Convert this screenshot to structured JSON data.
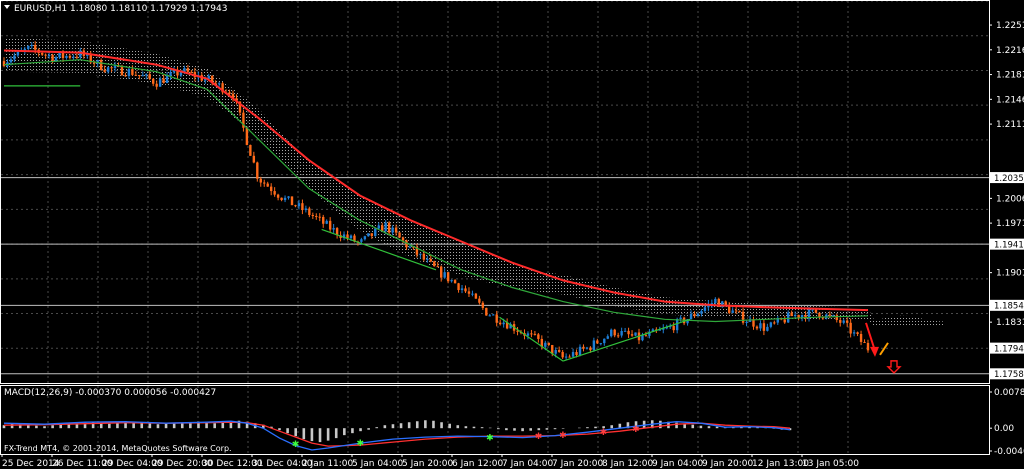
{
  "window": {
    "symbol_label": "EURUSD,H1",
    "ohlc": "1.18080 1.18110 1.17929 1.17943",
    "macd_label": "MACD(12,26,9) -0.000370 0.000056 -0.000427",
    "copyright": "FX-Trend MT4, © 2001-2014, MetaQuotes Software Corp."
  },
  "colors": {
    "background": "#000000",
    "grid": "#4a4a4a",
    "frame": "#ffffff",
    "bull_candle": "#1e7fd6",
    "bear_candle": "#ff6a1a",
    "ema_red": "#ff2b2b",
    "ema_green": "#2fa83a",
    "cloud": "#dddddd",
    "macd_hist": "#c8c8c8",
    "macd_main": "#2a6fff",
    "macd_signal": "#ff3030"
  },
  "chart_data": [
    {
      "type": "candlestick",
      "title": "",
      "price_axis": {
        "ylim": [
          1.1745,
          1.2285
        ],
        "ticks": [
          "1.22510",
          "1.22160",
          "1.21810",
          "1.21460",
          "1.21110",
          "1.20060",
          "1.19710",
          "1.19010",
          "1.18310",
          "1.17943"
        ]
      },
      "highlight_levels": [
        {
          "value": "1.20354",
          "price": 1.20354
        },
        {
          "value": "1.19413",
          "price": 1.19413
        },
        {
          "value": "1.18548",
          "price": 1.18548
        },
        {
          "value": "1.17580",
          "price": 1.1758
        }
      ],
      "time_axis": {
        "labels": [
          "25 Dec 2014",
          "26 Dec 11:00",
          "29 Dec 04:00",
          "29 Dec 20:00",
          "30 Dec 12:00",
          "31 Dec 04:00",
          "2 Jan 11:00",
          "5 Jan 04:00",
          "5 Jan 20:00",
          "6 Jan 12:00",
          "7 Jan 04:00",
          "7 Jan 20:00",
          "8 Jan 12:00",
          "9 Jan 04:00",
          "9 Jan 20:00",
          "12 Jan 13:00",
          "13 Jan 05:00"
        ]
      },
      "close_path": [
        [
          0,
          1.22
        ],
        [
          1,
          1.2218
        ],
        [
          2,
          1.2205
        ],
        [
          3,
          1.221
        ],
        [
          4,
          1.219
        ],
        [
          5,
          1.2185
        ],
        [
          6,
          1.217
        ],
        [
          7,
          1.2186
        ],
        [
          8,
          1.2174
        ],
        [
          9,
          1.2155
        ],
        [
          10,
          1.2035
        ],
        [
          11,
          1.2006
        ],
        [
          12,
          1.1985
        ],
        [
          13,
          1.196
        ],
        [
          14,
          1.1942
        ],
        [
          15,
          1.1968
        ],
        [
          16,
          1.1935
        ],
        [
          17,
          1.1905
        ],
        [
          18,
          1.188
        ],
        [
          19,
          1.1845
        ],
        [
          20,
          1.1825
        ],
        [
          21,
          1.1805
        ],
        [
          22,
          1.178
        ],
        [
          23,
          1.1795
        ],
        [
          24,
          1.1818
        ],
        [
          25,
          1.1808
        ],
        [
          26,
          1.182
        ],
        [
          27,
          1.1838
        ],
        [
          28,
          1.1862
        ],
        [
          29,
          1.1838
        ],
        [
          30,
          1.1822
        ],
        [
          31,
          1.184
        ],
        [
          32,
          1.1845
        ],
        [
          33,
          1.183
        ],
        [
          34,
          1.1794
        ]
      ],
      "ema_red_path": [
        [
          0,
          1.2215
        ],
        [
          3,
          1.2212
        ],
        [
          6,
          1.2195
        ],
        [
          8,
          1.2175
        ],
        [
          10,
          1.212
        ],
        [
          12,
          1.206
        ],
        [
          14,
          1.201
        ],
        [
          16,
          1.1975
        ],
        [
          18,
          1.1945
        ],
        [
          20,
          1.1915
        ],
        [
          22,
          1.189
        ],
        [
          24,
          1.1873
        ],
        [
          26,
          1.186
        ],
        [
          28,
          1.1855
        ],
        [
          30,
          1.1852
        ],
        [
          32,
          1.185
        ],
        [
          34,
          1.1848
        ]
      ],
      "ema_green_path": [
        [
          0,
          1.2195
        ],
        [
          3,
          1.2202
        ],
        [
          6,
          1.2185
        ],
        [
          8,
          1.216
        ],
        [
          10,
          1.209
        ],
        [
          12,
          1.202
        ],
        [
          14,
          1.1975
        ],
        [
          16,
          1.194
        ],
        [
          18,
          1.1905
        ],
        [
          20,
          1.188
        ],
        [
          22,
          1.186
        ],
        [
          24,
          1.1845
        ],
        [
          26,
          1.1835
        ],
        [
          28,
          1.1832
        ],
        [
          30,
          1.1835
        ],
        [
          32,
          1.1838
        ],
        [
          34,
          1.184
        ]
      ],
      "annotations": [
        "sell-arrow",
        "down-arrow-signal",
        "orange-forecast-line"
      ]
    },
    {
      "type": "bar",
      "title": "MACD(12,26,9)",
      "axis_ticks": [
        "0.00780",
        "0.00",
        "-0.00463"
      ],
      "ylim": [
        -0.0052,
        0.0085
      ],
      "histogram": [
        0.0006,
        0.0009,
        0.0008,
        0.0007,
        0.0005,
        0.0004,
        0.0006,
        0.0008,
        0.0009,
        0.001,
        0.0011,
        0.0012,
        0.001,
        0.0009,
        0.0012,
        0.0014,
        0.0013,
        0.0012,
        0.001,
        0.0008,
        0.0009,
        0.0011,
        0.001,
        0.0012,
        0.0013,
        0.0012,
        0.001,
        0.0011,
        0.0014,
        0.0015,
        0.0013,
        0.001,
        0.0007,
        0.0003,
        -0.0004,
        -0.001,
        -0.0016,
        -0.0022,
        -0.0026,
        -0.0028,
        -0.0025,
        -0.002,
        -0.0014,
        -0.001,
        -0.0006,
        -0.0003,
        0.0002,
        0.0006,
        0.0008,
        0.001,
        0.0012,
        0.0014,
        0.0016,
        0.0015,
        0.0012,
        0.0009,
        0.0006,
        0.0004,
        0.0003,
        0.0002,
        0.0001,
        -0.0002,
        -0.0004,
        -0.0005,
        -0.0006,
        -0.0005,
        -0.0004,
        -0.0003,
        -0.0002,
        -0.0001,
        0.0,
        0.0001,
        0.0002,
        0.0003,
        0.0004,
        0.0006,
        0.0009,
        0.0012,
        0.0014,
        0.0015,
        0.0016,
        0.0015,
        0.0013,
        0.0011,
        0.0009,
        0.0007,
        0.0005,
        0.0004,
        0.0003,
        0.0002,
        0.0003,
        0.0004,
        0.0003,
        0.0002,
        0.0001,
        -0.0001,
        -0.0003,
        -0.0004
      ],
      "main_line": [
        [
          0,
          0.001
        ],
        [
          5,
          0.0008
        ],
        [
          10,
          0.0012
        ],
        [
          15,
          0.0013
        ],
        [
          20,
          0.001
        ],
        [
          25,
          0.0012
        ],
        [
          28,
          0.0014
        ],
        [
          30,
          0.001
        ],
        [
          32,
          0.0
        ],
        [
          34,
          -0.002
        ],
        [
          36,
          -0.0035
        ],
        [
          38,
          -0.0044
        ],
        [
          40,
          -0.004
        ],
        [
          44,
          -0.003
        ],
        [
          48,
          -0.0022
        ],
        [
          52,
          -0.0018
        ],
        [
          56,
          -0.0016
        ],
        [
          60,
          -0.0017
        ],
        [
          64,
          -0.0019
        ],
        [
          68,
          -0.0015
        ],
        [
          72,
          -0.0008
        ],
        [
          76,
          0.0
        ],
        [
          80,
          0.0008
        ],
        [
          83,
          0.0013
        ],
        [
          86,
          0.001
        ],
        [
          89,
          0.0002
        ],
        [
          92,
          0.0003
        ],
        [
          95,
          0.0001
        ],
        [
          97,
          -0.0003
        ]
      ],
      "signal_line": [
        [
          0,
          0.0006
        ],
        [
          5,
          0.0007
        ],
        [
          10,
          0.0009
        ],
        [
          15,
          0.0011
        ],
        [
          20,
          0.001
        ],
        [
          25,
          0.0011
        ],
        [
          28,
          0.0012
        ],
        [
          30,
          0.0011
        ],
        [
          32,
          0.0006
        ],
        [
          34,
          -0.0006
        ],
        [
          36,
          -0.0018
        ],
        [
          38,
          -0.003
        ],
        [
          40,
          -0.0036
        ],
        [
          44,
          -0.0034
        ],
        [
          48,
          -0.0028
        ],
        [
          52,
          -0.0022
        ],
        [
          56,
          -0.0018
        ],
        [
          60,
          -0.0016
        ],
        [
          64,
          -0.0016
        ],
        [
          68,
          -0.0015
        ],
        [
          72,
          -0.0012
        ],
        [
          76,
          -0.0006
        ],
        [
          80,
          0.0002
        ],
        [
          83,
          0.0008
        ],
        [
          86,
          0.001
        ],
        [
          89,
          0.0006
        ],
        [
          92,
          0.0004
        ],
        [
          95,
          0.0003
        ],
        [
          97,
          0.0
        ]
      ]
    }
  ]
}
